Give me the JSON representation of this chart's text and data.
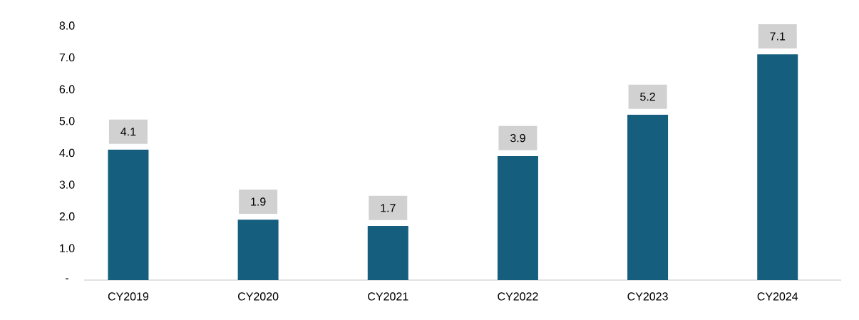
{
  "chart_data": {
    "type": "bar",
    "categories": [
      "CY2019",
      "CY2020",
      "CY2021",
      "CY2022",
      "CY2023",
      "CY2024"
    ],
    "values": [
      4.1,
      1.9,
      1.7,
      3.9,
      5.2,
      7.1
    ],
    "color": "#155e7e",
    "data_labels": true,
    "ylim": [
      0,
      8
    ],
    "yticks": [
      {
        "value": 0,
        "label": "-"
      },
      {
        "value": 1,
        "label": "1.0"
      },
      {
        "value": 2,
        "label": "2.0"
      },
      {
        "value": 3,
        "label": "3.0"
      },
      {
        "value": 4,
        "label": "4.0"
      },
      {
        "value": 5,
        "label": "5.0"
      },
      {
        "value": 6,
        "label": "6.0"
      },
      {
        "value": 7,
        "label": "7.0"
      },
      {
        "value": 8,
        "label": "8.0"
      }
    ]
  }
}
